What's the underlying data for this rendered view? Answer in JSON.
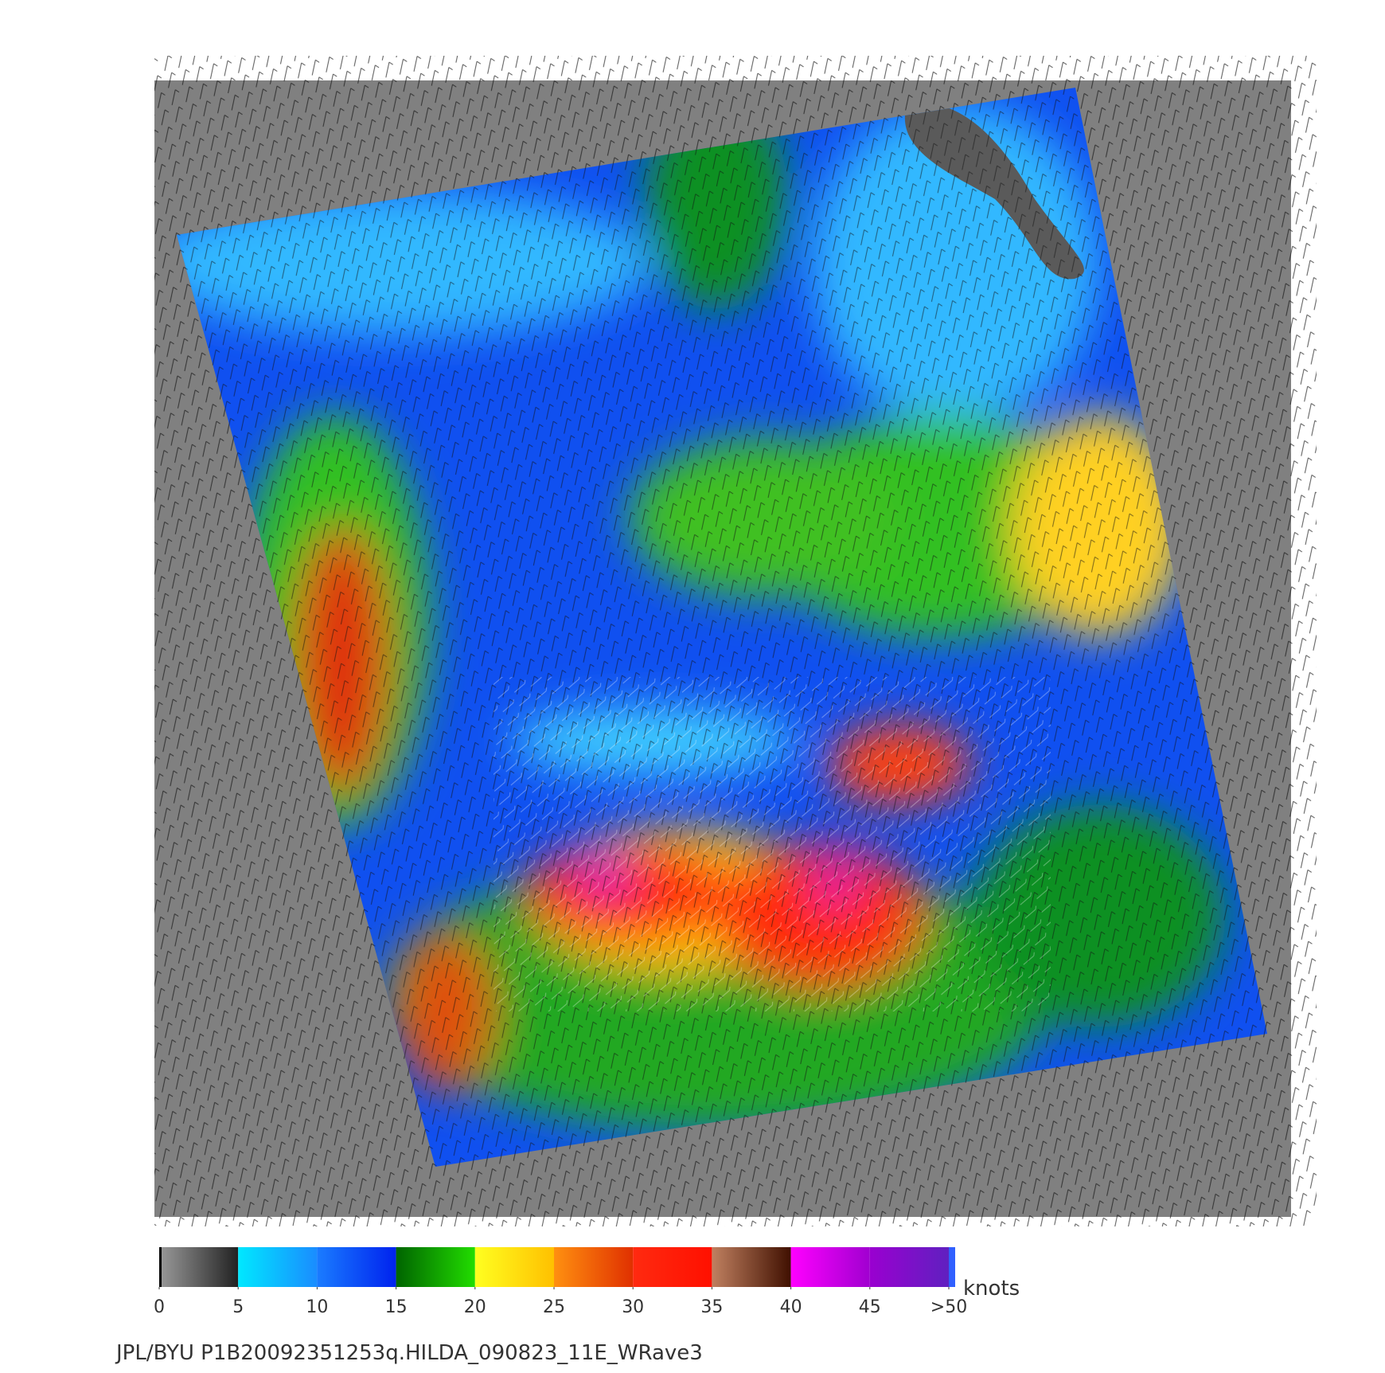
{
  "colorbar": {
    "ticks": [
      0,
      5,
      10,
      15,
      20,
      25,
      30,
      35,
      40,
      45,
      {
        "value": 50,
        "label": ">50"
      }
    ],
    "colors": [
      [
        "#9a9a9a",
        "#222222"
      ],
      [
        "#00e8ff",
        "#1a8cff"
      ],
      [
        "#1a7cff",
        "#0022ee"
      ],
      [
        "#006400",
        "#22dd00"
      ],
      [
        "#ffff20",
        "#ffc000"
      ],
      [
        "#ff9010",
        "#e03000"
      ],
      [
        "#ff2a10",
        "#ff1000"
      ],
      [
        "#c08060",
        "#401000"
      ],
      [
        "#ff00ff",
        "#a000d0"
      ],
      [
        "#9a00d0",
        "#6020c0"
      ]
    ],
    "unit": "knots"
  },
  "caption": "JPL/BYU  P1B20092351253q.HILDA_090823_11E_WRave3"
}
